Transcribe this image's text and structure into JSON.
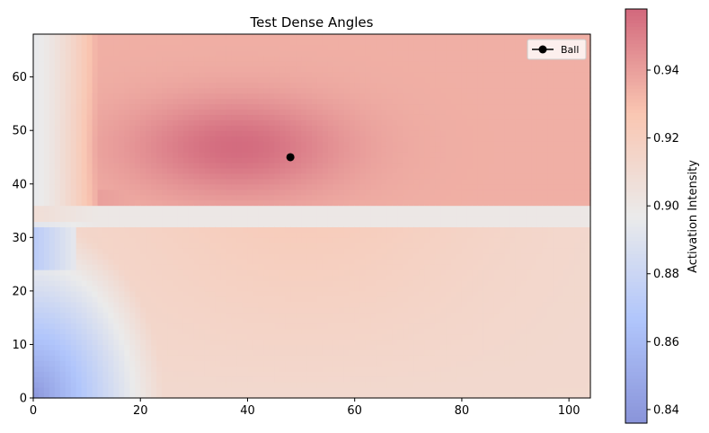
{
  "chart_data": {
    "type": "heatmap",
    "title": "Test Dense Angles",
    "xlabel": "",
    "ylabel": "",
    "xlim": [
      0,
      104
    ],
    "ylim": [
      0,
      68
    ],
    "x_ticks": [
      0,
      20,
      40,
      60,
      80,
      100
    ],
    "y_ticks": [
      0,
      10,
      20,
      30,
      40,
      50,
      60
    ],
    "colormap": "coolwarm",
    "colormap_alpha": 0.6,
    "colorbar": {
      "label": "Activation Intensity",
      "min": 0.836,
      "max": 0.958,
      "ticks": [
        0.84,
        0.86,
        0.88,
        0.9,
        0.92,
        0.94
      ],
      "tick_labels": [
        "0.84",
        "0.86",
        "0.88",
        "0.90",
        "0.92",
        "0.94"
      ]
    },
    "series": [
      {
        "name": "Ball",
        "type": "scatter",
        "x": [
          48
        ],
        "y": [
          45
        ],
        "color": "#000000"
      }
    ],
    "legend": {
      "position": "top-right",
      "entries": [
        "Ball"
      ]
    },
    "grid": false,
    "intensity_landmarks": [
      {
        "x": 0,
        "y": 0,
        "value": 0.838
      },
      {
        "x": 10,
        "y": 10,
        "value": 0.875
      },
      {
        "x": 30,
        "y": 5,
        "value": 0.905
      },
      {
        "x": 80,
        "y": 10,
        "value": 0.912
      },
      {
        "x": 50,
        "y": 25,
        "value": 0.92
      },
      {
        "x": 1,
        "y": 60,
        "value": 0.895
      },
      {
        "x": 40,
        "y": 48,
        "value": 0.955
      },
      {
        "x": 80,
        "y": 50,
        "value": 0.935
      },
      {
        "x": 60,
        "y": 34,
        "value": 0.9
      }
    ]
  }
}
